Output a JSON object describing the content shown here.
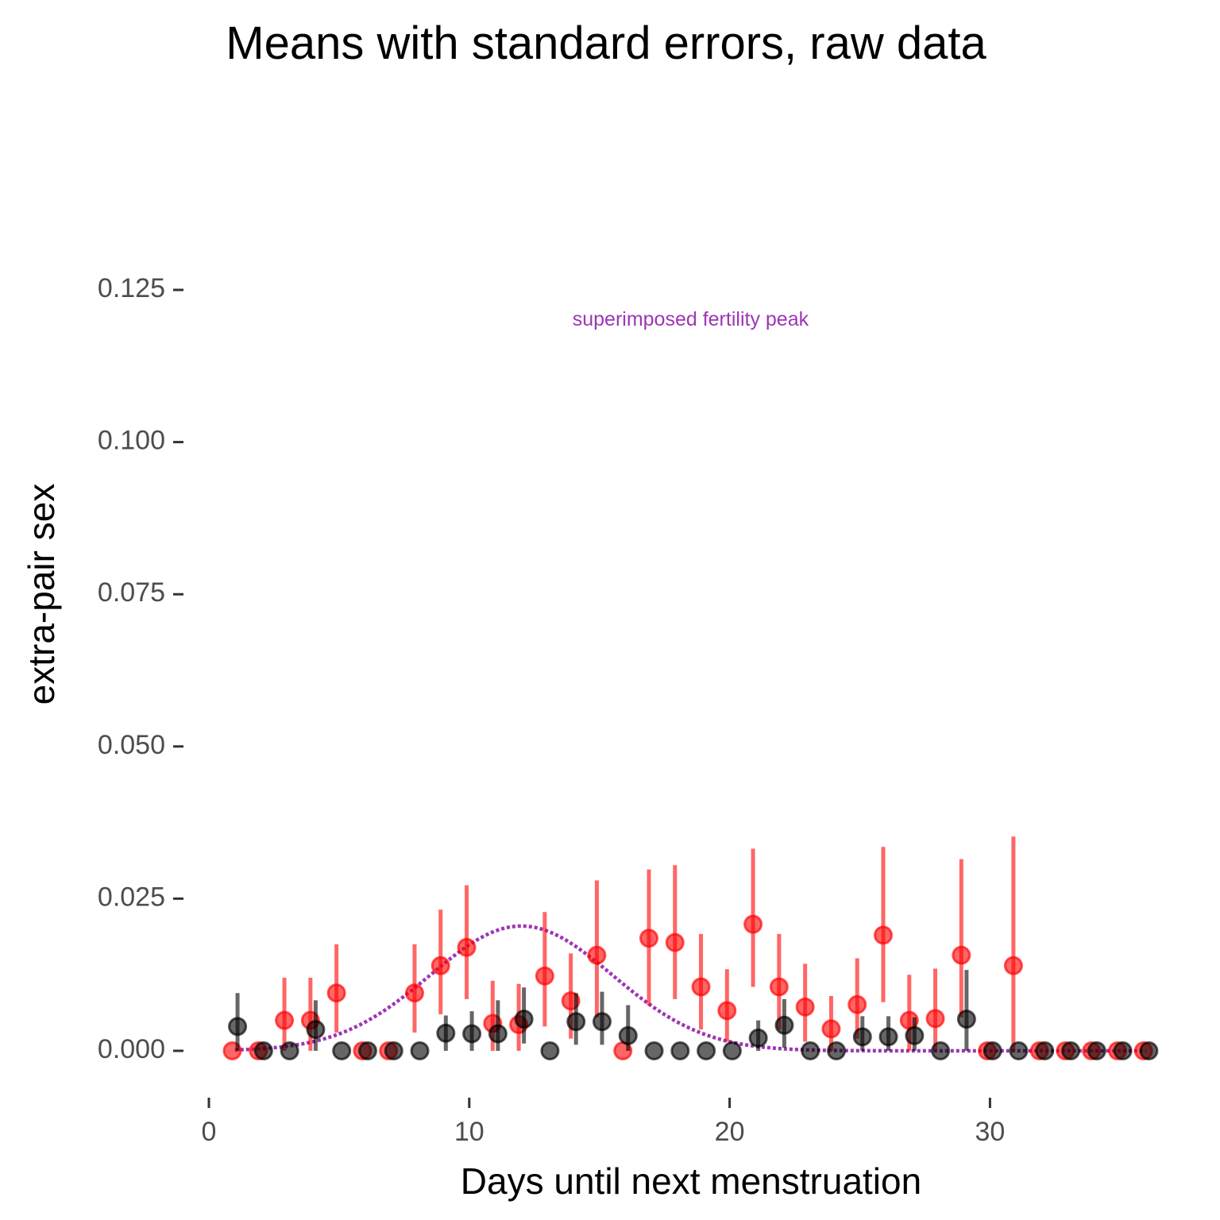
{
  "chart_data": {
    "type": "scatter",
    "title": "Means with standard errors, raw data",
    "xlabel": "Days until next menstruation",
    "ylabel": "extra-pair sex",
    "xlim": [
      0,
      36
    ],
    "ylim": [
      -0.005,
      0.125
    ],
    "x_ticks": [
      0,
      10,
      20,
      30
    ],
    "x_tick_labels": [
      "0",
      "10",
      "20",
      "30"
    ],
    "y_ticks": [
      0,
      0.025,
      0.05,
      0.075,
      0.1,
      0.125
    ],
    "y_tick_labels": [
      "0.000",
      "0.025",
      "0.050",
      "0.075",
      "0.100",
      "0.125"
    ],
    "grid": false,
    "legend": "none",
    "annotation": {
      "text": "superimposed fertility peak",
      "x": 18.5,
      "y": 0.12,
      "color": "#9e35b5"
    },
    "fertility_peak": {
      "mean_x": 12,
      "peak_y": 0.0205,
      "sd_x": 3.5,
      "x_range": [
        1,
        36
      ],
      "color": "#9e35b5",
      "style": "dotted"
    },
    "series": [
      {
        "color": "#ff0000",
        "points": [
          {
            "x": 0.9,
            "y": 0,
            "lo": 0,
            "hi": 0
          },
          {
            "x": 1.9,
            "y": 0,
            "lo": 0,
            "hi": 0
          },
          {
            "x": 2.9,
            "y": 0.005,
            "lo": 0,
            "hi": 0.012
          },
          {
            "x": 3.9,
            "y": 0.005,
            "lo": 0,
            "hi": 0.012
          },
          {
            "x": 4.9,
            "y": 0.0095,
            "lo": 0.003,
            "hi": 0.0175
          },
          {
            "x": 5.9,
            "y": 0,
            "lo": 0,
            "hi": 0
          },
          {
            "x": 6.9,
            "y": 0,
            "lo": 0,
            "hi": 0
          },
          {
            "x": 7.9,
            "y": 0.0095,
            "lo": 0.003,
            "hi": 0.0175
          },
          {
            "x": 8.9,
            "y": 0.014,
            "lo": 0.006,
            "hi": 0.0232
          },
          {
            "x": 9.9,
            "y": 0.017,
            "lo": 0.0085,
            "hi": 0.0272
          },
          {
            "x": 10.9,
            "y": 0.0045,
            "lo": 0,
            "hi": 0.0115
          },
          {
            "x": 11.9,
            "y": 0.0043,
            "lo": 0,
            "hi": 0.011
          },
          {
            "x": 12.9,
            "y": 0.0123,
            "lo": 0.004,
            "hi": 0.0228
          },
          {
            "x": 13.9,
            "y": 0.0082,
            "lo": 0.002,
            "hi": 0.016
          },
          {
            "x": 14.9,
            "y": 0.0157,
            "lo": 0.0055,
            "hi": 0.028
          },
          {
            "x": 15.9,
            "y": 0,
            "lo": 0,
            "hi": 0
          },
          {
            "x": 16.9,
            "y": 0.0185,
            "lo": 0.0075,
            "hi": 0.0298
          },
          {
            "x": 17.9,
            "y": 0.0178,
            "lo": 0.0085,
            "hi": 0.0305
          },
          {
            "x": 18.9,
            "y": 0.0105,
            "lo": 0.0035,
            "hi": 0.0192
          },
          {
            "x": 19.9,
            "y": 0.0066,
            "lo": 0.0015,
            "hi": 0.0134
          },
          {
            "x": 20.9,
            "y": 0.0208,
            "lo": 0.0105,
            "hi": 0.0332
          },
          {
            "x": 21.9,
            "y": 0.0105,
            "lo": 0.0035,
            "hi": 0.0192
          },
          {
            "x": 22.9,
            "y": 0.0072,
            "lo": 0.0015,
            "hi": 0.0143
          },
          {
            "x": 23.9,
            "y": 0.0036,
            "lo": 0,
            "hi": 0.009
          },
          {
            "x": 24.9,
            "y": 0.0076,
            "lo": 0.002,
            "hi": 0.0152
          },
          {
            "x": 25.9,
            "y": 0.019,
            "lo": 0.008,
            "hi": 0.0335
          },
          {
            "x": 26.9,
            "y": 0.005,
            "lo": 0,
            "hi": 0.0125
          },
          {
            "x": 27.9,
            "y": 0.0053,
            "lo": 0,
            "hi": 0.0135
          },
          {
            "x": 28.9,
            "y": 0.0157,
            "lo": 0.0055,
            "hi": 0.0315
          },
          {
            "x": 29.9,
            "y": 0,
            "lo": 0,
            "hi": 0
          },
          {
            "x": 30.9,
            "y": 0.014,
            "lo": 0,
            "hi": 0.0352
          },
          {
            "x": 31.9,
            "y": 0,
            "lo": 0,
            "hi": 0
          },
          {
            "x": 32.9,
            "y": 0,
            "lo": 0,
            "hi": 0
          },
          {
            "x": 33.9,
            "y": 0,
            "lo": 0,
            "hi": 0
          },
          {
            "x": 34.9,
            "y": 0,
            "lo": 0,
            "hi": 0
          },
          {
            "x": 35.9,
            "y": 0,
            "lo": 0,
            "hi": 0
          }
        ]
      },
      {
        "color": "#000000",
        "points": [
          {
            "x": 1.1,
            "y": 0.004,
            "lo": 0,
            "hi": 0.0095
          },
          {
            "x": 2.1,
            "y": 0,
            "lo": 0,
            "hi": 0
          },
          {
            "x": 3.1,
            "y": 0,
            "lo": 0,
            "hi": 0
          },
          {
            "x": 4.1,
            "y": 0.0035,
            "lo": 0,
            "hi": 0.0083
          },
          {
            "x": 5.1,
            "y": 0,
            "lo": 0,
            "hi": 0
          },
          {
            "x": 6.1,
            "y": 0,
            "lo": 0,
            "hi": 0
          },
          {
            "x": 7.1,
            "y": 0,
            "lo": 0,
            "hi": 0
          },
          {
            "x": 8.1,
            "y": 0,
            "lo": 0,
            "hi": 0
          },
          {
            "x": 9.1,
            "y": 0.0029,
            "lo": 0,
            "hi": 0.0058
          },
          {
            "x": 10.1,
            "y": 0.0028,
            "lo": 0,
            "hi": 0.0065
          },
          {
            "x": 11.1,
            "y": 0.0028,
            "lo": 0,
            "hi": 0.0083
          },
          {
            "x": 12.1,
            "y": 0.0052,
            "lo": 0.0012,
            "hi": 0.0104
          },
          {
            "x": 13.1,
            "y": 0,
            "lo": 0,
            "hi": 0
          },
          {
            "x": 14.1,
            "y": 0.0048,
            "lo": 0.001,
            "hi": 0.0095
          },
          {
            "x": 15.1,
            "y": 0.0048,
            "lo": 0.001,
            "hi": 0.0097
          },
          {
            "x": 16.1,
            "y": 0.0025,
            "lo": 0,
            "hi": 0.0075
          },
          {
            "x": 17.1,
            "y": 0,
            "lo": 0,
            "hi": 0
          },
          {
            "x": 18.1,
            "y": 0,
            "lo": 0,
            "hi": 0
          },
          {
            "x": 19.1,
            "y": 0,
            "lo": 0,
            "hi": 0
          },
          {
            "x": 20.1,
            "y": 0,
            "lo": 0,
            "hi": 0
          },
          {
            "x": 21.1,
            "y": 0.0021,
            "lo": 0,
            "hi": 0.005
          },
          {
            "x": 22.1,
            "y": 0.0042,
            "lo": 0.0005,
            "hi": 0.0085
          },
          {
            "x": 23.1,
            "y": 0,
            "lo": 0,
            "hi": 0
          },
          {
            "x": 24.1,
            "y": 0,
            "lo": 0,
            "hi": 0
          },
          {
            "x": 25.1,
            "y": 0.0023,
            "lo": 0,
            "hi": 0.0057
          },
          {
            "x": 26.1,
            "y": 0.0023,
            "lo": 0,
            "hi": 0.0057
          },
          {
            "x": 27.1,
            "y": 0.0025,
            "lo": 0,
            "hi": 0.0055
          },
          {
            "x": 28.1,
            "y": 0,
            "lo": 0,
            "hi": 0
          },
          {
            "x": 29.1,
            "y": 0.0052,
            "lo": 0,
            "hi": 0.0133
          },
          {
            "x": 30.1,
            "y": 0,
            "lo": 0,
            "hi": 0
          },
          {
            "x": 31.1,
            "y": 0,
            "lo": 0,
            "hi": 0
          },
          {
            "x": 32.1,
            "y": 0,
            "lo": 0,
            "hi": 0
          },
          {
            "x": 33.1,
            "y": 0,
            "lo": 0,
            "hi": 0
          },
          {
            "x": 34.1,
            "y": 0,
            "lo": 0,
            "hi": 0
          },
          {
            "x": 35.1,
            "y": 0,
            "lo": 0,
            "hi": 0
          },
          {
            "x": 36.1,
            "y": 0,
            "lo": 0,
            "hi": 0
          }
        ]
      }
    ]
  }
}
